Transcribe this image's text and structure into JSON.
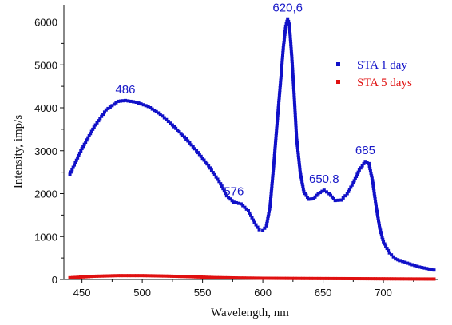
{
  "chart_data": {
    "type": "scatter",
    "xlabel": "Wavelength, nm",
    "ylabel": "Intensity, imp/s",
    "xlim": [
      435,
      745
    ],
    "ylim": [
      0,
      6400
    ],
    "x_ticks": [
      450,
      500,
      550,
      600,
      650,
      700
    ],
    "y_ticks": [
      0,
      1000,
      2000,
      3000,
      4000,
      5000,
      6000
    ],
    "grid": false,
    "legend_position": "top-right",
    "series": [
      {
        "name": "STA 1 day",
        "color": "#1010c8",
        "points": [
          [
            440,
            2450
          ],
          [
            450,
            3050
          ],
          [
            460,
            3550
          ],
          [
            470,
            3950
          ],
          [
            480,
            4150
          ],
          [
            486,
            4170
          ],
          [
            495,
            4130
          ],
          [
            505,
            4030
          ],
          [
            515,
            3850
          ],
          [
            525,
            3600
          ],
          [
            535,
            3320
          ],
          [
            545,
            3000
          ],
          [
            555,
            2650
          ],
          [
            565,
            2230
          ],
          [
            570,
            1950
          ],
          [
            576,
            1800
          ],
          [
            582,
            1760
          ],
          [
            588,
            1600
          ],
          [
            593,
            1330
          ],
          [
            597,
            1160
          ],
          [
            600,
            1140
          ],
          [
            603,
            1250
          ],
          [
            606,
            1700
          ],
          [
            609,
            2650
          ],
          [
            612,
            3700
          ],
          [
            615,
            4700
          ],
          [
            617,
            5400
          ],
          [
            619,
            5900
          ],
          [
            620.6,
            6070
          ],
          [
            622,
            5950
          ],
          [
            624,
            5200
          ],
          [
            626,
            4300
          ],
          [
            628,
            3300
          ],
          [
            631,
            2500
          ],
          [
            634,
            2050
          ],
          [
            638,
            1870
          ],
          [
            642,
            1880
          ],
          [
            646,
            2000
          ],
          [
            650.8,
            2080
          ],
          [
            655,
            2000
          ],
          [
            660,
            1840
          ],
          [
            665,
            1850
          ],
          [
            670,
            2000
          ],
          [
            675,
            2250
          ],
          [
            680,
            2550
          ],
          [
            685,
            2750
          ],
          [
            688,
            2700
          ],
          [
            691,
            2300
          ],
          [
            694,
            1700
          ],
          [
            697,
            1200
          ],
          [
            700,
            880
          ],
          [
            705,
            620
          ],
          [
            710,
            480
          ],
          [
            720,
            380
          ],
          [
            730,
            290
          ],
          [
            742,
            220
          ]
        ]
      },
      {
        "name": "STA 5 days",
        "color": "#e01010",
        "points": [
          [
            440,
            40
          ],
          [
            460,
            75
          ],
          [
            480,
            90
          ],
          [
            500,
            90
          ],
          [
            520,
            80
          ],
          [
            540,
            65
          ],
          [
            560,
            45
          ],
          [
            580,
            35
          ],
          [
            600,
            28
          ],
          [
            620,
            25
          ],
          [
            640,
            22
          ],
          [
            660,
            20
          ],
          [
            680,
            18
          ],
          [
            700,
            15
          ],
          [
            720,
            12
          ],
          [
            742,
            10
          ]
        ]
      }
    ],
    "annotations": [
      {
        "text": "486",
        "x": 486,
        "y": 4170
      },
      {
        "text": "576",
        "x": 576,
        "y": 1800
      },
      {
        "text": "620,6",
        "x": 620.6,
        "y": 6070
      },
      {
        "text": "650,8",
        "x": 650.8,
        "y": 2080
      },
      {
        "text": "685",
        "x": 685,
        "y": 2750
      }
    ]
  },
  "colors": {
    "axis": "#111111",
    "annotation": "#1a1ac8"
  }
}
